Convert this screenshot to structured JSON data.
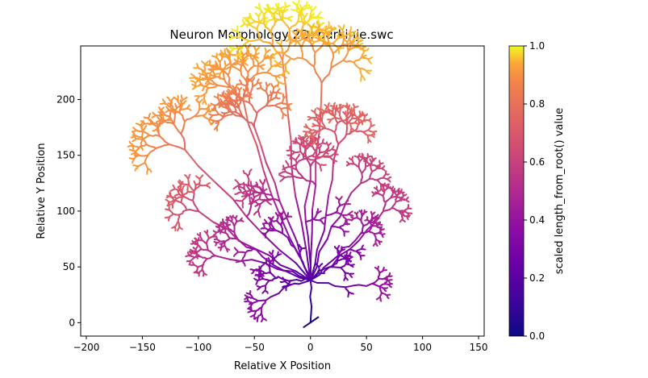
{
  "chart_data": {
    "type": "line",
    "title": "Neuron Morphology 2D: purkinje.swc",
    "xlabel": "Relative X Position",
    "ylabel": "Relative Y Position",
    "xlim": [
      -205,
      155
    ],
    "ylim": [
      -12,
      248
    ],
    "xticks": [
      -200,
      -150,
      -100,
      -50,
      0,
      50,
      100,
      150
    ],
    "yticks": [
      0,
      50,
      100,
      150,
      200
    ],
    "colormap": "plasma",
    "colorbar": {
      "label": "scaled length_from_root() value",
      "range": [
        0,
        1
      ],
      "ticks": [
        0.0,
        0.2,
        0.4,
        0.6,
        0.8,
        1.0
      ]
    },
    "soma_stub": {
      "x": [
        -6,
        7
      ],
      "y": [
        -4,
        5
      ],
      "value": 0.02
    },
    "tree": {
      "seed": 11,
      "root": [
        0,
        0
      ],
      "trunk_top": [
        0,
        38
      ],
      "branches": [
        {
          "x": 0,
          "y": 140
        },
        {
          "x": -25,
          "y": 80
        },
        {
          "x": -65,
          "y": 75
        },
        {
          "x": -85,
          "y": 60
        },
        {
          "x": -30,
          "y": 40
        },
        {
          "x": -40,
          "y": 20
        },
        {
          "x": -100,
          "y": 100
        },
        {
          "x": -112,
          "y": 155
        },
        {
          "x": -60,
          "y": 200
        },
        {
          "x": -25,
          "y": 235
        },
        {
          "x": -50,
          "y": 175
        },
        {
          "x": 25,
          "y": 160
        },
        {
          "x": 45,
          "y": 125
        },
        {
          "x": 65,
          "y": 100
        },
        {
          "x": 45,
          "y": 80
        },
        {
          "x": 55,
          "y": 35
        },
        {
          "x": 20,
          "y": 50
        },
        {
          "x": 10,
          "y": 215
        }
      ]
    }
  }
}
